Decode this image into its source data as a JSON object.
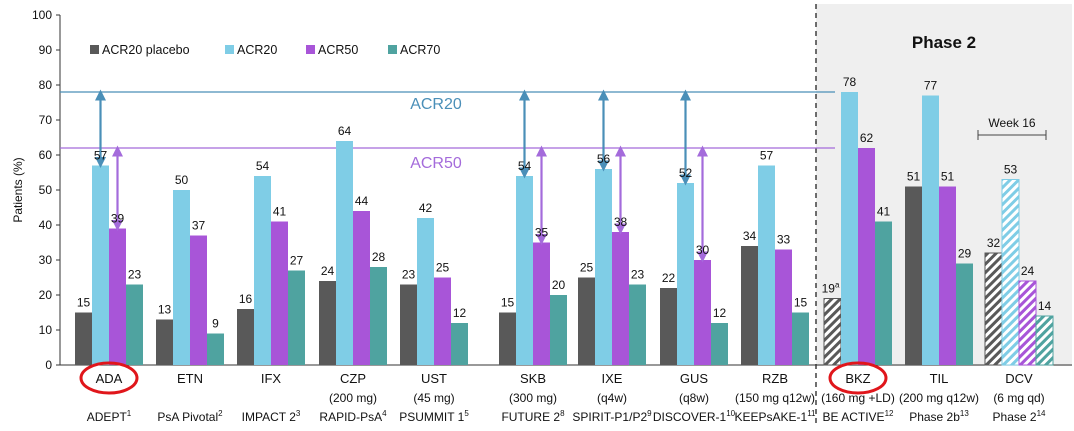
{
  "chart_data": {
    "type": "bar",
    "ylabel": "Patients (%)",
    "ylim": [
      0,
      100
    ],
    "yticks": [
      0,
      10,
      20,
      30,
      40,
      50,
      60,
      70,
      80,
      90,
      100
    ],
    "grid": false,
    "legend_position": "top-left",
    "series": [
      {
        "key": "placebo",
        "name": "ACR20 placebo",
        "color": "#595959"
      },
      {
        "key": "acr20",
        "name": "ACR20",
        "color": "#7FCDE6"
      },
      {
        "key": "acr50",
        "name": "ACR50",
        "color": "#A855D8"
      },
      {
        "key": "acr70",
        "name": "ACR70",
        "color": "#4FA3A0"
      }
    ],
    "groups": [
      {
        "name": "ADA",
        "dose": "",
        "trial": "ADEPT",
        "ref": "1",
        "circled": true,
        "values": {
          "placebo": 15,
          "acr20": 57,
          "acr50": 39,
          "acr70": 23
        },
        "arrows": true
      },
      {
        "name": "ETN",
        "dose": "",
        "trial": "PsA Pivotal",
        "ref": "2",
        "values": {
          "placebo": 13,
          "acr20": 50,
          "acr50": 37,
          "acr70": 9
        }
      },
      {
        "name": "IFX",
        "dose": "",
        "trial": "IMPACT 2",
        "ref": "3",
        "values": {
          "placebo": 16,
          "acr20": 54,
          "acr50": 41,
          "acr70": 27
        }
      },
      {
        "name": "CZP",
        "dose": "(200 mg)",
        "trial": "RAPID-PsA",
        "ref": "4",
        "values": {
          "placebo": 24,
          "acr20": 64,
          "acr50": 44,
          "acr70": 28
        }
      },
      {
        "name": "UST",
        "dose": "(45 mg)",
        "trial": "PSUMMIT 1",
        "ref": "5",
        "values": {
          "placebo": 23,
          "acr20": 42,
          "acr50": 25,
          "acr70": 12
        }
      },
      {
        "name": "SKB",
        "dose": "(300 mg)",
        "trial": "FUTURE 2",
        "ref": "8",
        "values": {
          "placebo": 15,
          "acr20": 54,
          "acr50": 35,
          "acr70": 20
        },
        "arrows": true
      },
      {
        "name": "IXE",
        "dose": "(q4w)",
        "trial": "SPIRIT-P1/P2",
        "ref": "9",
        "values": {
          "placebo": 25,
          "acr20": 56,
          "acr50": 38,
          "acr70": 23
        },
        "arrows": true
      },
      {
        "name": "GUS",
        "dose": "(q8w)",
        "trial": "DISCOVER-1",
        "ref": "10",
        "values": {
          "placebo": 22,
          "acr20": 52,
          "acr50": 30,
          "acr70": 12
        },
        "arrows": true
      },
      {
        "name": "RZB",
        "dose": "(150 mg q12w)",
        "trial": "KEEPsAKE-1",
        "ref": "11",
        "values": {
          "placebo": 34,
          "acr20": 57,
          "acr50": 33,
          "acr70": 15
        }
      },
      {
        "name": "BKZ",
        "dose": "(160 mg +LD)",
        "trial": "BE ACTIVE",
        "ref": "12",
        "circled": true,
        "hatched_placebo": true,
        "placebo_suffix": "a",
        "values": {
          "placebo": 19,
          "acr20": 78,
          "acr50": 62,
          "acr70": 41
        }
      },
      {
        "name": "TIL",
        "dose": "(200 mg q12w)",
        "trial": "Phase 2b",
        "ref": "13",
        "values": {
          "placebo": 51,
          "acr20": 77,
          "acr50": 51,
          "acr70": 29
        }
      },
      {
        "name": "DCV",
        "dose": "(6 mg qd)",
        "trial": "Phase 2",
        "ref": "14",
        "hatched_all": true,
        "values": {
          "placebo": 32,
          "acr20": 53,
          "acr50": 24,
          "acr70": 14
        }
      }
    ],
    "reference_lines": [
      {
        "label": "ACR20",
        "y": 78,
        "color": "#4A8FB8"
      },
      {
        "label": "ACR50",
        "y": 62,
        "color": "#A46BDB"
      }
    ],
    "phase2_panel": {
      "title": "Phase 2"
    },
    "week16_bracket": {
      "label": "Week 16"
    }
  }
}
